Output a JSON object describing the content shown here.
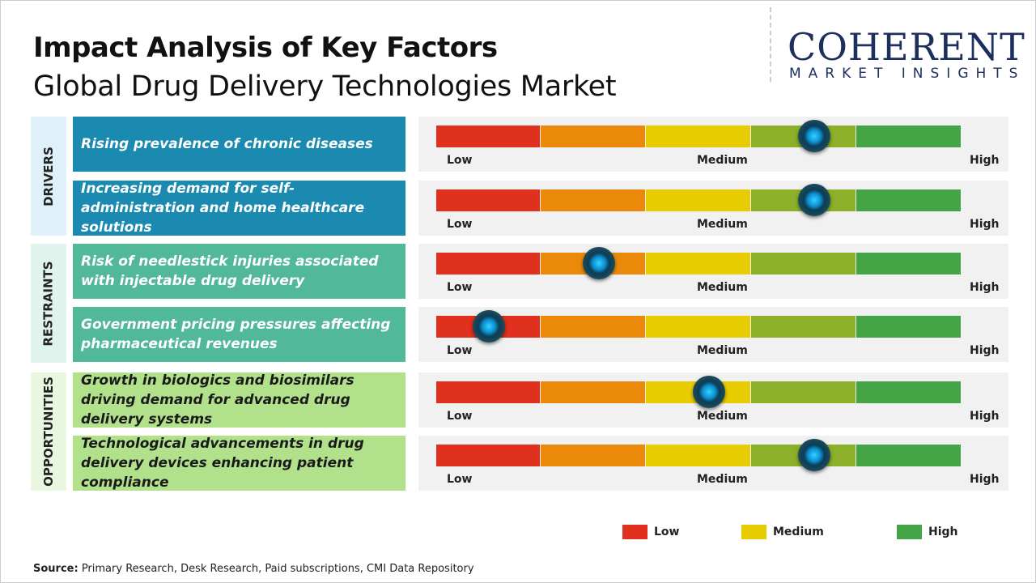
{
  "title": "Impact Analysis of Key Factors",
  "subtitle": "Global Drug Delivery Technologies Market",
  "logo": {
    "line1": "COHERENT",
    "line2": "MARKET INSIGHTS"
  },
  "scale_labels": {
    "low": "Low",
    "medium": "Medium",
    "high": "High"
  },
  "segment_colors": [
    "#e0301e",
    "#eb8a0a",
    "#e6cc00",
    "#8db02a",
    "#43a546"
  ],
  "legend": [
    {
      "label": "Low",
      "color": "#e0301e"
    },
    {
      "label": "Medium",
      "color": "#e6cc00"
    },
    {
      "label": "High",
      "color": "#43a546"
    }
  ],
  "source": {
    "label": "Source:",
    "text": " Primary Research, Desk Research, Paid subscriptions, CMI Data Repository"
  },
  "chart_data": {
    "type": "gauge-table",
    "title": "Impact Analysis of Key Factors",
    "subtitle": "Global Drug Delivery Technologies Market",
    "scale": "0 = Low, 0.5 = Medium, 1 = High",
    "categories": [
      {
        "name": "DRIVERS",
        "color": "#1a8ab0",
        "bg": "#dff1f8",
        "text_color": "#ffffff",
        "factors": [
          {
            "label": "Rising prevalence of chronic diseases",
            "impact": 0.72
          },
          {
            "label": "Increasing demand for self-administration and home healthcare solutions",
            "impact": 0.72
          }
        ]
      },
      {
        "name": "RESTRAINTS",
        "color": "#52b89a",
        "bg": "#e0f3ec",
        "text_color": "#ffffff",
        "factors": [
          {
            "label": "Risk of needlestick injuries associated with injectable drug delivery",
            "impact": 0.31
          },
          {
            "label": "Government pricing pressures affecting pharmaceutical revenues",
            "impact": 0.1
          }
        ]
      },
      {
        "name": "OPPORTUNITIES",
        "color": "#b2e18c",
        "bg": "#eaf7e0",
        "text_color": "#1a1a1a",
        "factors": [
          {
            "label": "Growth in biologics and biosimilars driving demand for advanced drug delivery systems",
            "impact": 0.52
          },
          {
            "label": "Technological advancements in drug delivery devices enhancing patient compliance",
            "impact": 0.72
          }
        ]
      }
    ]
  }
}
